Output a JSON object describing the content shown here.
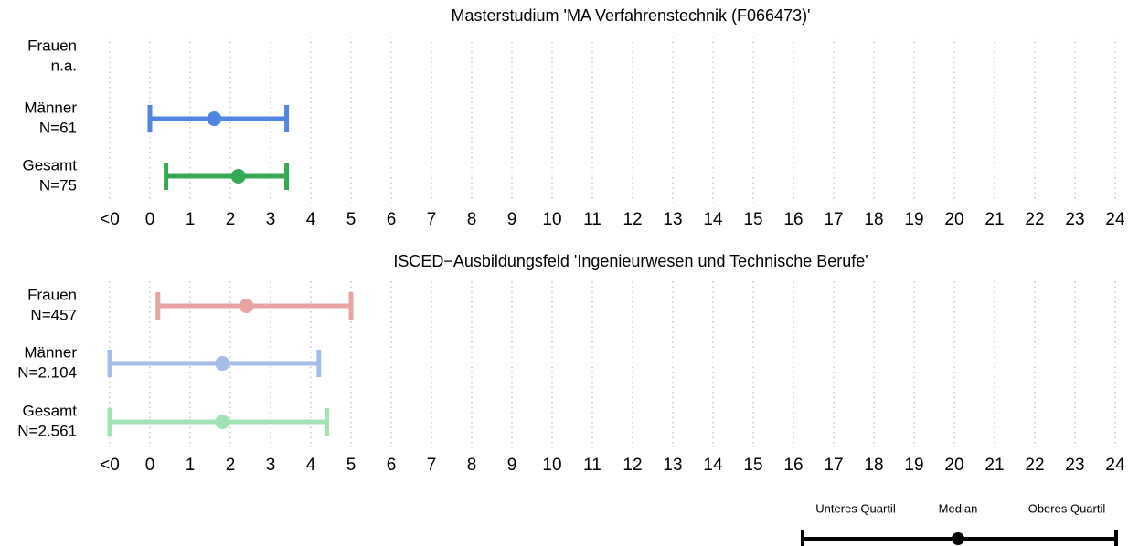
{
  "chart_data": [
    {
      "type": "interval",
      "title": "Masterstudium 'MA Verfahrenstechnik (F066473)'",
      "categories": [
        "Frauen",
        "Männer",
        "Gesamt"
      ],
      "n_labels": [
        "n.a.",
        "N=61",
        "N=75"
      ],
      "colors": [
        "#e06666",
        "#4f86e0",
        "#34a853"
      ],
      "lower": [
        null,
        0,
        0.4
      ],
      "median": [
        null,
        1.6,
        2.2
      ],
      "upper": [
        null,
        3.4,
        3.4
      ],
      "xlim": [
        -1,
        24
      ],
      "xticks": [
        {
          "value": -1,
          "label": "<0"
        },
        0,
        1,
        2,
        3,
        4,
        5,
        6,
        7,
        8,
        9,
        10,
        11,
        12,
        13,
        14,
        15,
        16,
        17,
        18,
        19,
        20,
        21,
        22,
        23,
        24
      ],
      "grid": true
    },
    {
      "type": "interval",
      "title": "ISCED−Ausbildungsfeld 'Ingenieurwesen und Technische Berufe'",
      "categories": [
        "Frauen",
        "Männer",
        "Gesamt"
      ],
      "n_labels": [
        "N=457",
        "N=2.104",
        "N=2.561"
      ],
      "colors": [
        "#e8a3a3",
        "#a3bde8",
        "#a3e2b3"
      ],
      "lower": [
        0.2,
        -1,
        -1
      ],
      "median": [
        2.4,
        1.8,
        1.8
      ],
      "upper": [
        5.0,
        4.2,
        4.4
      ],
      "xlim": [
        -1,
        24
      ],
      "xticks": [
        {
          "value": -1,
          "label": "<0"
        },
        0,
        1,
        2,
        3,
        4,
        5,
        6,
        7,
        8,
        9,
        10,
        11,
        12,
        13,
        14,
        15,
        16,
        17,
        18,
        19,
        20,
        21,
        22,
        23,
        24
      ],
      "grid": true
    }
  ],
  "legend": {
    "labels": [
      "Unteres Quartil",
      "Median",
      "Oberes Quartil"
    ]
  }
}
